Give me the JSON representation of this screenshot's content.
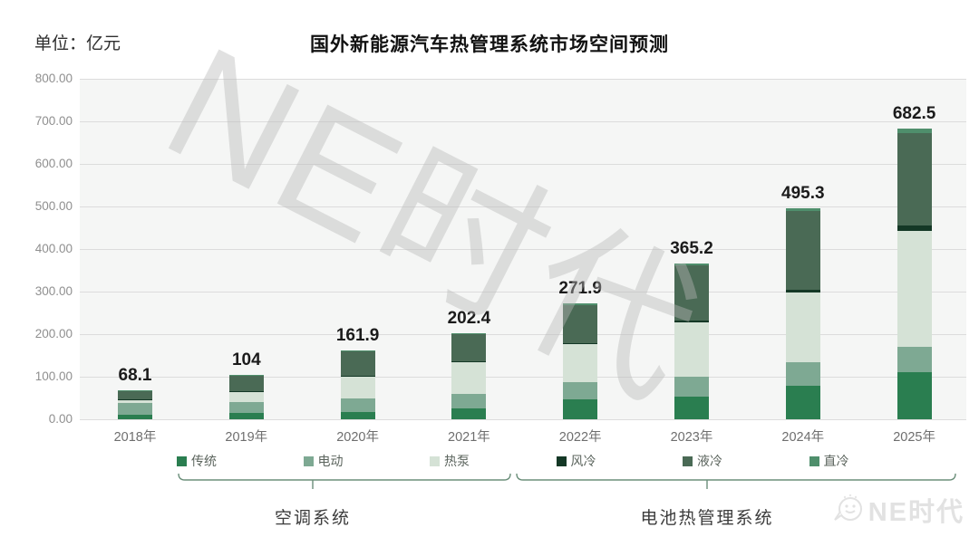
{
  "title": "国外新能源汽车热管理系统市场空间预测",
  "unit_label": "单位：亿元",
  "watermark_text": "NE时代",
  "logo_text": "NE时代",
  "legend_groups": [
    {
      "label": "空调系统",
      "members": [
        "传统",
        "电动",
        "热泵"
      ]
    },
    {
      "label": "电池热管理系统",
      "members": [
        "风冷",
        "液冷",
        "直冷"
      ]
    }
  ],
  "chart_data": {
    "type": "bar",
    "stacked": true,
    "title": "国外新能源汽车热管理系统市场空间预测",
    "unit": "亿元",
    "categories": [
      "2018年",
      "2019年",
      "2020年",
      "2021年",
      "2022年",
      "2023年",
      "2024年",
      "2025年"
    ],
    "series": [
      {
        "name": "传统",
        "color": "#2a7e50",
        "values": [
          10,
          15,
          18,
          25,
          46,
          53,
          78,
          110
        ]
      },
      {
        "name": "电动",
        "color": "#7ea993",
        "values": [
          28,
          25,
          31,
          35,
          42,
          46,
          55,
          60
        ]
      },
      {
        "name": "热泵",
        "color": "#d5e2d6",
        "values": [
          9,
          24,
          52,
          73,
          88,
          128,
          165,
          272
        ]
      },
      {
        "name": "风冷",
        "color": "#143826",
        "values": [
          0.5,
          1,
          2,
          2.4,
          3,
          4,
          6,
          13
        ]
      },
      {
        "name": "液冷",
        "color": "#4a6a55",
        "values": [
          20,
          38,
          57,
          65,
          90,
          130,
          185,
          218
        ]
      },
      {
        "name": "直冷",
        "color": "#4f8f6c",
        "values": [
          0.6,
          1,
          1.9,
          2,
          2.9,
          4.2,
          6.3,
          9.5
        ]
      }
    ],
    "totals": [
      68.1,
      104,
      161.9,
      202.4,
      271.9,
      365.2,
      495.3,
      682.5
    ],
    "ylim": [
      0,
      800
    ],
    "ytick_step": 100,
    "yticks": [
      "800.00",
      "700.00",
      "600.00",
      "500.00",
      "400.00",
      "300.00",
      "200.00",
      "100.00",
      "0.00"
    ],
    "grid": true,
    "legend_position": "bottom"
  }
}
